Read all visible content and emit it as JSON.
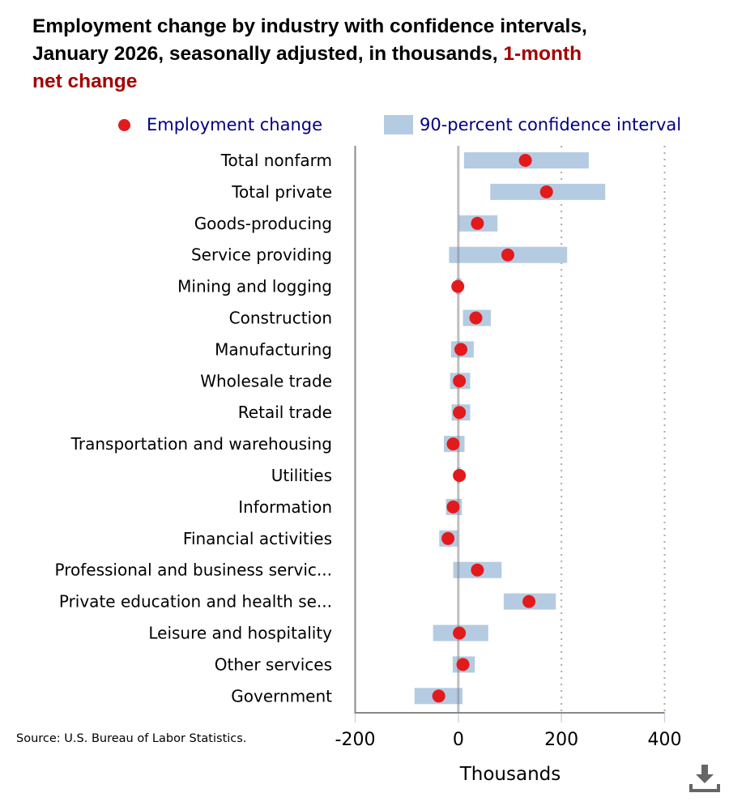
{
  "title": {
    "main": "Employment change by industry with confidence intervals, January 2026, seasonally adjusted, in thousands, ",
    "highlight": "1-month net change"
  },
  "source": "Source: U.S. Bureau of Labor Statistics.",
  "colors": {
    "dot": "#e31a1c",
    "interval": "#b5cbe2",
    "highlight": "#a50000",
    "legend_text": "#000080"
  },
  "chart_data": {
    "type": "scatter",
    "title": "Employment change by industry with confidence intervals, January 2026, seasonally adjusted, in thousands, 1-month net change",
    "xlabel": "Thousands",
    "xlim": [
      -200,
      400
    ],
    "xticks": [
      -200,
      0,
      200,
      400
    ],
    "xtick_labels": [
      "-200",
      "0",
      "200",
      "400"
    ],
    "grid": "vertical dotted",
    "legend": {
      "placement": "top",
      "entries": [
        "Employment change",
        "90-percent confidence interval"
      ]
    },
    "categories": [
      "Total nonfarm",
      "Total private",
      "Goods-producing",
      "Service providing",
      "Mining and logging",
      "Construction",
      "Manufacturing",
      "Wholesale trade",
      "Retail trade",
      "Transportation and warehousing",
      "Utilities",
      "Information",
      "Financial activities",
      "Professional and business servic...",
      "Private education and health se...",
      "Leisure and hospitality",
      "Other services",
      "Government"
    ],
    "series": [
      {
        "name": "Employment change",
        "values": [
          130,
          171,
          37,
          96,
          -1,
          34,
          5,
          2,
          2,
          -10,
          2,
          -10,
          -20,
          37,
          137,
          2,
          9,
          -38
        ]
      },
      {
        "name": "90-percent confidence interval",
        "low": [
          11,
          62,
          1,
          -18,
          -4,
          9,
          -14,
          -16,
          -13,
          -28,
          -3,
          -24,
          -37,
          -10,
          88,
          -49,
          -11,
          -85
        ],
        "high": [
          253,
          285,
          76,
          211,
          6,
          63,
          30,
          23,
          23,
          12,
          4,
          7,
          -1,
          84,
          189,
          58,
          32,
          8
        ]
      }
    ]
  },
  "icons": {
    "download": "download-icon"
  }
}
